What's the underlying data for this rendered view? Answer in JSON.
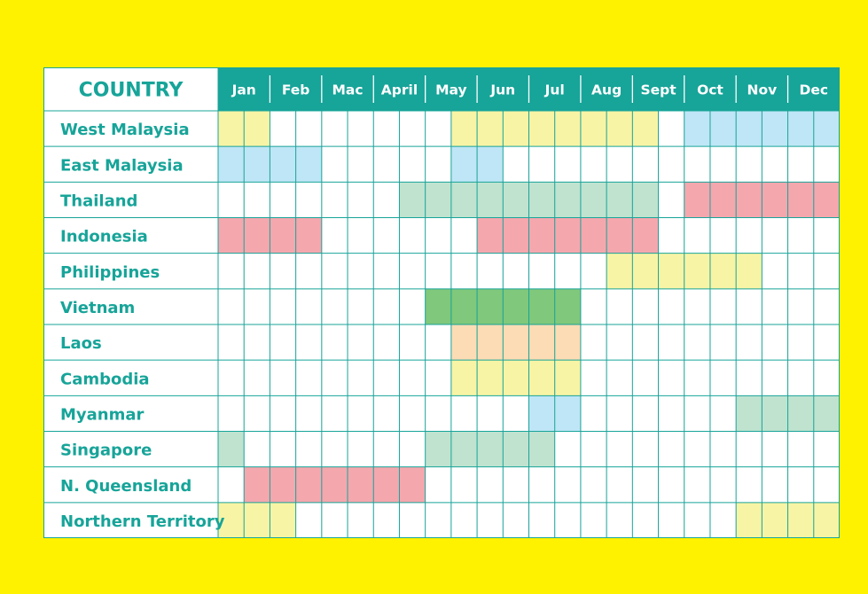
{
  "chart_data": {
    "type": "table",
    "corner_label": "COUNTRY",
    "months": [
      "Jan",
      "Feb",
      "Mac",
      "April",
      "May",
      "Jun",
      "Jul",
      "Aug",
      "Sept",
      "Oct",
      "Nov",
      "Dec"
    ],
    "half_months_per_month": 2,
    "colors": {
      "header": "#17a499",
      "text": "#17a499",
      "grid": "#17a499",
      "yellow": "#f8f4a5",
      "blue": "#bfe6f6",
      "green": "#bfe3cf",
      "dark_green": "#80c87b",
      "pink": "#f5a7ae",
      "orange": "#fcdcb4"
    },
    "countries": [
      {
        "name": "West Malaysia",
        "periods": [
          {
            "start": 0,
            "end": 1,
            "color": "yellow"
          },
          {
            "start": 9,
            "end": 16,
            "color": "yellow"
          },
          {
            "start": 18,
            "end": 23,
            "color": "blue"
          }
        ]
      },
      {
        "name": "East Malaysia",
        "periods": [
          {
            "start": 0,
            "end": 3,
            "color": "blue"
          },
          {
            "start": 9,
            "end": 10,
            "color": "blue"
          }
        ]
      },
      {
        "name": "Thailand",
        "periods": [
          {
            "start": 7,
            "end": 16,
            "color": "green"
          },
          {
            "start": 18,
            "end": 23,
            "color": "pink"
          }
        ]
      },
      {
        "name": "Indonesia",
        "periods": [
          {
            "start": 0,
            "end": 3,
            "color": "pink"
          },
          {
            "start": 10,
            "end": 16,
            "color": "pink"
          }
        ]
      },
      {
        "name": "Philippines",
        "periods": [
          {
            "start": 15,
            "end": 20,
            "color": "yellow"
          }
        ]
      },
      {
        "name": "Vietnam",
        "periods": [
          {
            "start": 8,
            "end": 13,
            "color": "dark_green"
          }
        ]
      },
      {
        "name": "Laos",
        "periods": [
          {
            "start": 9,
            "end": 13,
            "color": "orange"
          }
        ]
      },
      {
        "name": "Cambodia",
        "periods": [
          {
            "start": 9,
            "end": 13,
            "color": "yellow"
          }
        ]
      },
      {
        "name": "Myanmar",
        "periods": [
          {
            "start": 12,
            "end": 13,
            "color": "blue"
          },
          {
            "start": 20,
            "end": 23,
            "color": "green"
          }
        ]
      },
      {
        "name": "Singapore",
        "periods": [
          {
            "start": 0,
            "end": 0,
            "color": "green"
          },
          {
            "start": 8,
            "end": 12,
            "color": "green"
          }
        ]
      },
      {
        "name": "N. Queensland",
        "periods": [
          {
            "start": 1,
            "end": 7,
            "color": "pink"
          }
        ]
      },
      {
        "name": "Northern Territory",
        "periods": [
          {
            "start": 0,
            "end": 2,
            "color": "yellow"
          },
          {
            "start": 20,
            "end": 23,
            "color": "yellow"
          }
        ]
      }
    ]
  }
}
